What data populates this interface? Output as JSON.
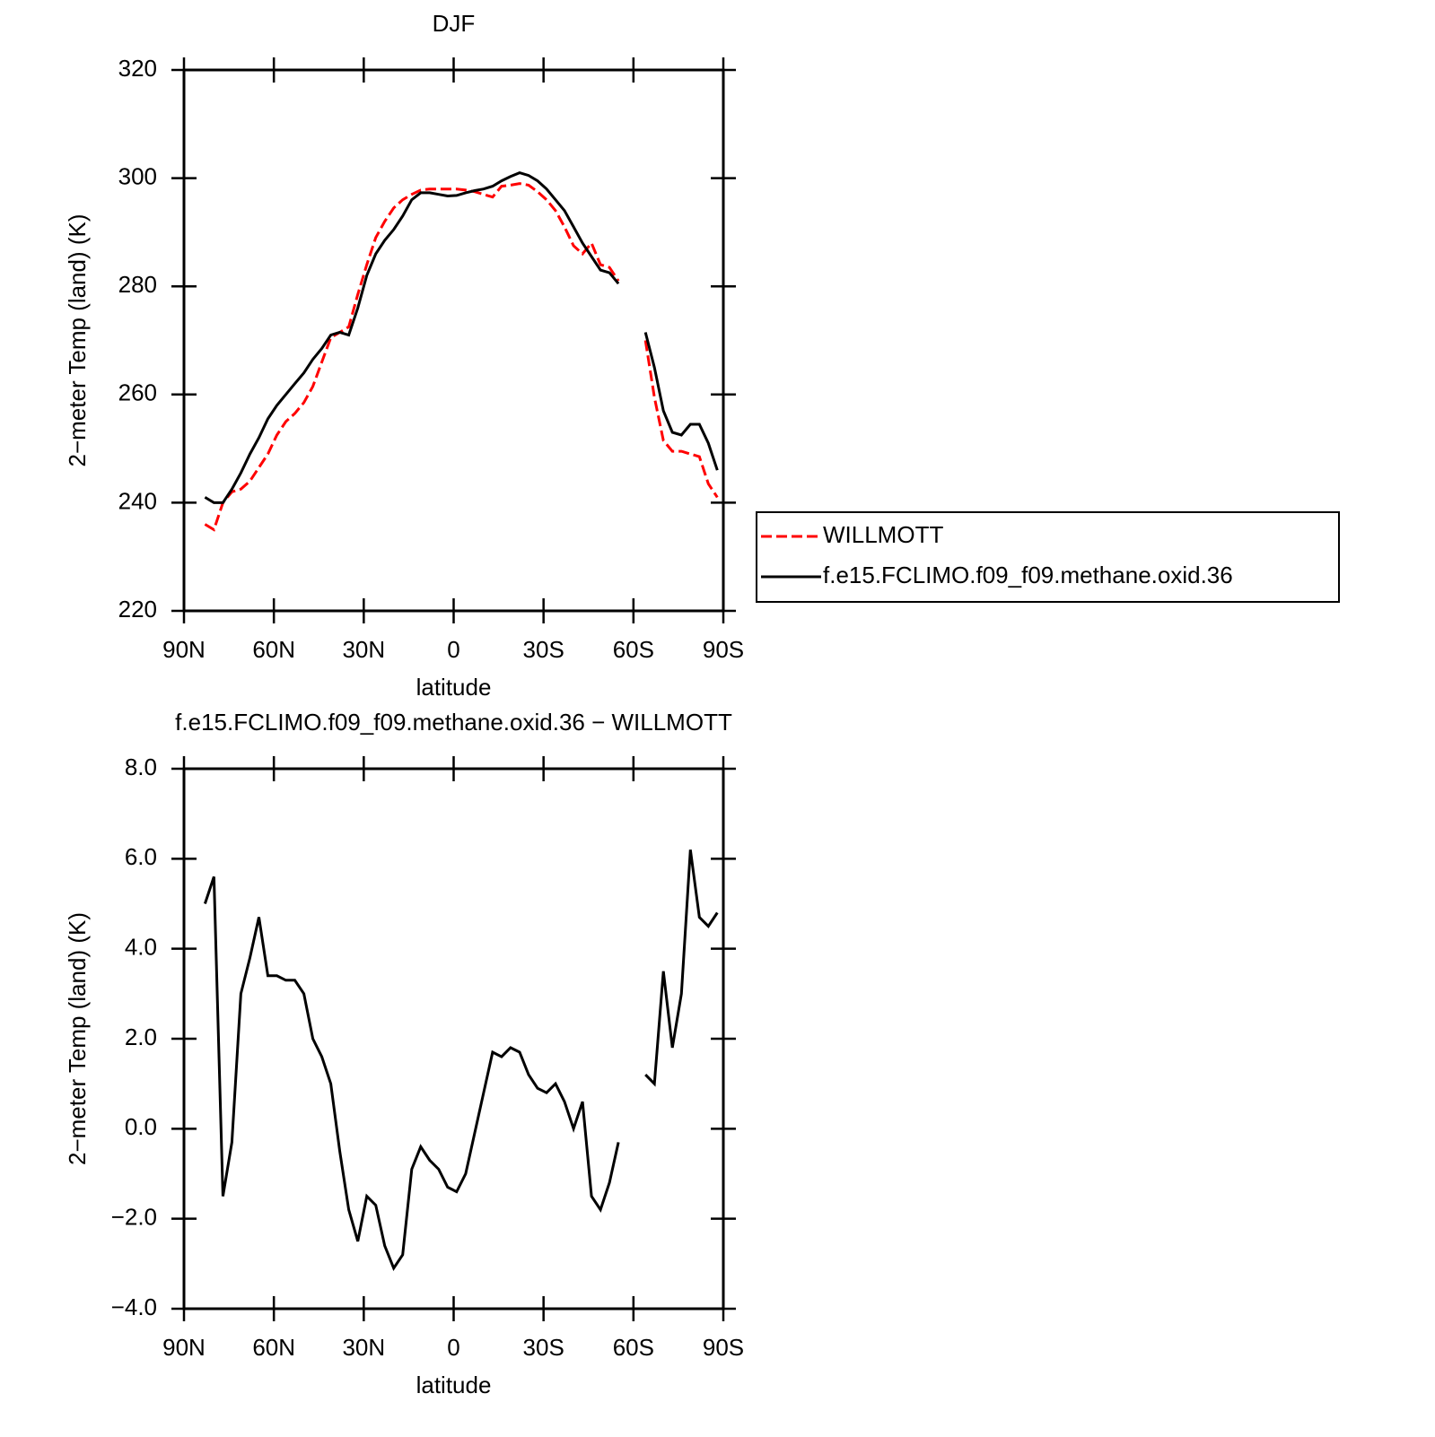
{
  "chart_data": [
    {
      "type": "line",
      "title": "DJF",
      "xlabel": "latitude",
      "ylabel": "2−meter Temp (land) (K)",
      "x": [
        83,
        80,
        77,
        74,
        71,
        68,
        65,
        62,
        59,
        56,
        53,
        50,
        47,
        44,
        41,
        38,
        35,
        32,
        29,
        26,
        23,
        20,
        17,
        14,
        11,
        8,
        5,
        2,
        -1,
        -4,
        -7,
        -10,
        -13,
        -16,
        -19,
        -22,
        -25,
        -28,
        -31,
        -34,
        -37,
        -40,
        -43,
        -46,
        -49,
        -52,
        -55,
        -58,
        -61,
        -64,
        -67,
        -70,
        -73,
        -76,
        -79,
        -82,
        -85,
        -88
      ],
      "series": [
        {
          "name": "WILLMOTT",
          "color": "#ff0000",
          "linestyle": "dashed",
          "values": [
            236,
            235,
            240,
            242,
            242.5,
            244,
            246.5,
            249,
            252.5,
            255,
            256.5,
            258.5,
            261.5,
            266,
            270.5,
            271.5,
            272.5,
            278.5,
            284,
            289,
            292,
            294.5,
            296,
            297,
            297.8,
            298,
            298,
            298,
            298,
            297.8,
            297.5,
            297,
            296.5,
            298.5,
            298.7,
            299,
            298.7,
            297.5,
            296,
            294,
            291,
            287.5,
            286,
            288,
            284,
            283.5,
            281,
            null,
            null,
            270,
            259.5,
            251.5,
            249.5,
            249.5,
            249,
            248.5,
            243.5,
            241
          ]
        },
        {
          "name": "f.e15.FCLIMO.f09_f09.methane.oxid.36",
          "color": "#000000",
          "linestyle": "solid",
          "values": [
            241,
            240,
            240,
            242.5,
            245.5,
            249,
            252,
            255.5,
            258,
            260,
            262,
            264,
            266.5,
            268.5,
            271,
            271.5,
            271,
            276,
            282,
            286,
            288.5,
            290.5,
            293,
            296,
            297.3,
            297.3,
            297,
            296.7,
            296.8,
            297.3,
            297.7,
            298,
            298.5,
            299.5,
            300.3,
            301,
            300.5,
            299.5,
            298,
            296,
            294,
            291,
            288,
            285.5,
            283,
            282.5,
            280.5,
            null,
            null,
            271.5,
            265,
            257,
            253,
            252.5,
            254.5,
            254.5,
            251,
            246
          ]
        }
      ],
      "xlim": [
        90,
        -90
      ],
      "xticks": [
        {
          "value": 90,
          "label": "90N"
        },
        {
          "value": 60,
          "label": "60N"
        },
        {
          "value": 30,
          "label": "30N"
        },
        0,
        {
          "value": -30,
          "label": "30S"
        },
        {
          "value": -60,
          "label": "60S"
        },
        {
          "value": -90,
          "label": "90S"
        }
      ],
      "ylim": [
        220,
        320
      ],
      "yticks": [
        220,
        240,
        260,
        280,
        300,
        320
      ],
      "legend": "right"
    },
    {
      "type": "line",
      "title": "f.e15.FCLIMO.f09_f09.methane.oxid.36 − WILLMOTT",
      "xlabel": "latitude",
      "ylabel": "2−meter Temp (land) (K)",
      "x": [
        83,
        80,
        77,
        74,
        71,
        68,
        65,
        62,
        59,
        56,
        53,
        50,
        47,
        44,
        41,
        38,
        35,
        32,
        29,
        26,
        23,
        20,
        17,
        14,
        11,
        8,
        5,
        2,
        -1,
        -4,
        -7,
        -10,
        -13,
        -16,
        -19,
        -22,
        -25,
        -28,
        -31,
        -34,
        -37,
        -40,
        -43,
        -46,
        -49,
        -52,
        -55,
        -58,
        -61,
        -64,
        -67,
        -70,
        -73,
        -76,
        -79,
        -82,
        -85,
        -88
      ],
      "series": [
        {
          "color": "#000000",
          "linestyle": "solid",
          "values": [
            5.0,
            5.6,
            -1.5,
            -0.3,
            3.0,
            3.8,
            4.7,
            3.4,
            3.4,
            3.3,
            3.3,
            3.0,
            2.0,
            1.6,
            1.0,
            -0.5,
            -1.8,
            -2.5,
            -1.5,
            -1.7,
            -2.6,
            -3.1,
            -2.8,
            -0.9,
            -0.4,
            -0.7,
            -0.9,
            -1.3,
            -1.4,
            -1.0,
            -0.1,
            0.8,
            1.7,
            1.6,
            1.8,
            1.7,
            1.2,
            0.9,
            0.8,
            1.0,
            0.6,
            0.0,
            0.6,
            -1.5,
            -1.8,
            -1.2,
            -0.3,
            null,
            null,
            1.2,
            1.0,
            3.5,
            1.8,
            3.0,
            6.2,
            4.7,
            4.5,
            4.8
          ]
        }
      ],
      "xlim": [
        90,
        -90
      ],
      "xticks": [
        {
          "value": 90,
          "label": "90N"
        },
        {
          "value": 60,
          "label": "60N"
        },
        {
          "value": 30,
          "label": "30N"
        },
        0,
        {
          "value": -30,
          "label": "30S"
        },
        {
          "value": -60,
          "label": "60S"
        },
        {
          "value": -90,
          "label": "90S"
        }
      ],
      "ylim": [
        -4,
        8
      ],
      "yticks": [
        {
          "value": -4,
          "label": "−4.0"
        },
        {
          "value": -2,
          "label": "−2.0"
        },
        {
          "value": 0,
          "label": "0.0"
        },
        {
          "value": 2,
          "label": "2.0"
        },
        {
          "value": 4,
          "label": "4.0"
        },
        {
          "value": 6,
          "label": "6.0"
        },
        {
          "value": 8,
          "label": "8.0"
        }
      ]
    }
  ]
}
